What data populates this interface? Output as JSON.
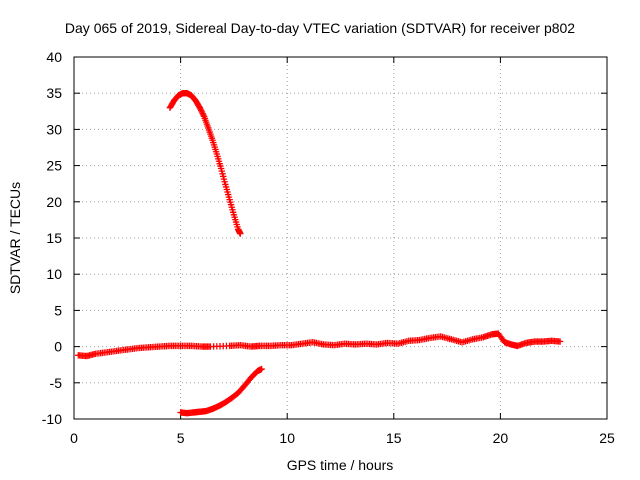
{
  "chart_data": {
    "type": "scatter",
    "title": "Day 065 of 2019, Sidereal Day-to-day VTEC variation (SDTVAR) for receiver p802",
    "xlabel": "GPS time / hours",
    "ylabel": "SDTVAR / TECUs",
    "xlim": [
      0,
      25
    ],
    "ylim": [
      -10,
      40
    ],
    "xticks": [
      "0",
      "5",
      "10",
      "15",
      "20",
      "25"
    ],
    "yticks": [
      "-10",
      "-5",
      "0",
      "5",
      "10",
      "15",
      "20",
      "25",
      "30",
      "35",
      "40"
    ],
    "grid": true,
    "legend": "none",
    "marker": "plus",
    "color": "#ff0000",
    "series": [
      {
        "name": "main arc",
        "points": [
          [
            0.2,
            -1.2
          ],
          [
            0.6,
            -1.3
          ],
          [
            1.0,
            -1.0
          ],
          [
            1.5,
            -0.8
          ],
          [
            2.0,
            -0.6
          ],
          [
            2.5,
            -0.4
          ],
          [
            3.0,
            -0.2
          ],
          [
            3.5,
            -0.1
          ],
          [
            4.0,
            0.0
          ],
          [
            4.5,
            0.1
          ],
          [
            5.0,
            0.1
          ],
          [
            5.5,
            0.1
          ],
          [
            6.0,
            0.0
          ],
          [
            6.4,
            0.0
          ],
          [
            7.3,
            0.1
          ],
          [
            7.8,
            0.2
          ],
          [
            8.3,
            0.0
          ],
          [
            8.7,
            0.1
          ],
          [
            9.2,
            0.1
          ],
          [
            9.7,
            0.2
          ],
          [
            10.2,
            0.2
          ],
          [
            10.7,
            0.4
          ],
          [
            11.2,
            0.6
          ],
          [
            11.7,
            0.3
          ],
          [
            12.2,
            0.2
          ],
          [
            12.7,
            0.4
          ],
          [
            13.2,
            0.3
          ],
          [
            13.7,
            0.4
          ],
          [
            14.2,
            0.3
          ],
          [
            14.7,
            0.5
          ],
          [
            15.2,
            0.4
          ],
          [
            15.7,
            0.8
          ],
          [
            16.2,
            0.9
          ],
          [
            16.7,
            1.2
          ],
          [
            17.2,
            1.4
          ],
          [
            17.7,
            1.0
          ],
          [
            18.2,
            0.6
          ],
          [
            18.7,
            1.0
          ],
          [
            19.2,
            1.3
          ],
          [
            19.6,
            1.7
          ],
          [
            19.9,
            1.8
          ],
          [
            20.2,
            0.6
          ],
          [
            20.5,
            0.3
          ],
          [
            20.8,
            0.1
          ],
          [
            21.2,
            0.5
          ],
          [
            21.6,
            0.7
          ],
          [
            22.0,
            0.7
          ],
          [
            22.4,
            0.8
          ],
          [
            22.8,
            0.7
          ]
        ]
      },
      {
        "name": "upper arc",
        "points": [
          [
            4.5,
            33.0
          ],
          [
            4.7,
            34.0
          ],
          [
            4.9,
            34.7
          ],
          [
            5.1,
            35.0
          ],
          [
            5.3,
            35.0
          ],
          [
            5.5,
            34.7
          ],
          [
            5.7,
            34.0
          ],
          [
            5.9,
            33.0
          ],
          [
            6.1,
            31.8
          ],
          [
            6.3,
            30.2
          ],
          [
            6.5,
            28.5
          ],
          [
            6.7,
            26.6
          ],
          [
            6.9,
            24.6
          ],
          [
            7.1,
            22.4
          ],
          [
            7.3,
            20.3
          ],
          [
            7.5,
            18.2
          ],
          [
            7.7,
            16.2
          ],
          [
            7.8,
            15.6
          ]
        ]
      },
      {
        "name": "lower arc",
        "points": [
          [
            5.0,
            -9.1
          ],
          [
            5.3,
            -9.2
          ],
          [
            5.6,
            -9.1
          ],
          [
            5.9,
            -9.0
          ],
          [
            6.2,
            -8.9
          ],
          [
            6.5,
            -8.6
          ],
          [
            6.8,
            -8.2
          ],
          [
            7.1,
            -7.7
          ],
          [
            7.4,
            -7.1
          ],
          [
            7.7,
            -6.4
          ],
          [
            8.0,
            -5.4
          ],
          [
            8.3,
            -4.3
          ],
          [
            8.6,
            -3.4
          ],
          [
            8.8,
            -3.1
          ]
        ]
      }
    ]
  }
}
